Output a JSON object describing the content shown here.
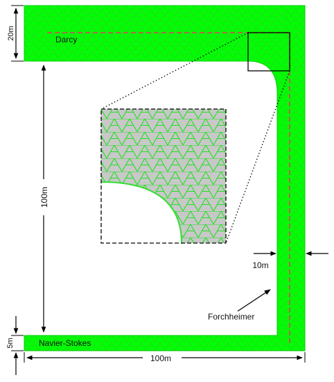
{
  "labels": {
    "darcy": "Darcy",
    "navier_stokes": "Navier-Stokes",
    "forchheimer": "Forchheimer"
  },
  "dimensions": {
    "top_height": "20m",
    "left_height": "100m",
    "bottom_height": "5m",
    "bottom_width": "100m",
    "right_width": "10m"
  },
  "colors": {
    "mesh_green": "#00ff00",
    "mesh_line": "#3bd93b",
    "zoom_fill": "#c8c8c8",
    "centerline": "#e0405a",
    "outline": "#000000"
  }
}
